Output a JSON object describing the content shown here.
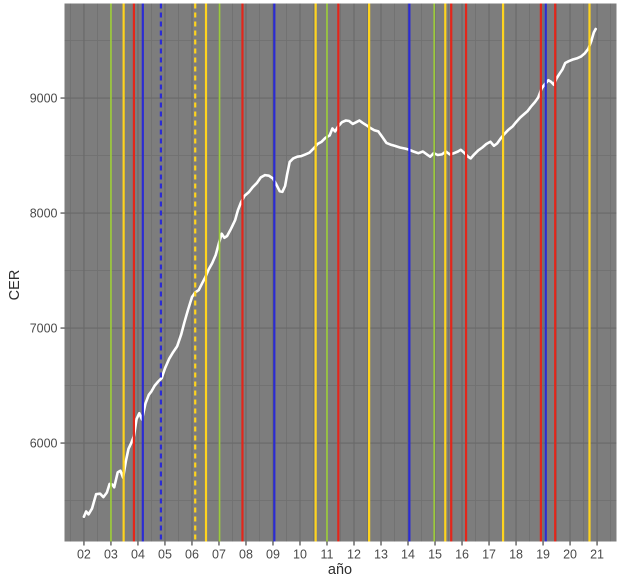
{
  "chart_data": {
    "type": "line",
    "title": "",
    "xlabel": "año",
    "ylabel": "CER",
    "legend_position": "none",
    "grid": "on",
    "x_range": [
      2001.28,
      2021.72
    ],
    "y_range": [
      5144,
      9822
    ],
    "x_ticks": [
      {
        "x": 2002,
        "label": "02"
      },
      {
        "x": 2003,
        "label": "03"
      },
      {
        "x": 2004,
        "label": "04"
      },
      {
        "x": 2005,
        "label": "05"
      },
      {
        "x": 2006,
        "label": "06"
      },
      {
        "x": 2007,
        "label": "07"
      },
      {
        "x": 2008,
        "label": "08"
      },
      {
        "x": 2009,
        "label": "09"
      },
      {
        "x": 2010,
        "label": "10"
      },
      {
        "x": 2011,
        "label": "11"
      },
      {
        "x": 2012,
        "label": "12"
      },
      {
        "x": 2013,
        "label": "13"
      },
      {
        "x": 2014,
        "label": "14"
      },
      {
        "x": 2015,
        "label": "15"
      },
      {
        "x": 2016,
        "label": "16"
      },
      {
        "x": 2017,
        "label": "17"
      },
      {
        "x": 2018,
        "label": "18"
      },
      {
        "x": 2019,
        "label": "19"
      },
      {
        "x": 2020,
        "label": "20"
      },
      {
        "x": 2021,
        "label": "21"
      }
    ],
    "y_ticks": [
      {
        "y": 6000,
        "label": "6000"
      },
      {
        "y": 7000,
        "label": "7000"
      },
      {
        "y": 8000,
        "label": "8000"
      },
      {
        "y": 9000,
        "label": "9000"
      }
    ],
    "y_minor": [
      5500,
      6500,
      7500,
      8500,
      9500
    ],
    "x_minor_start": 2001.5,
    "x_minor_end": 2021.5,
    "colors": {
      "panel_bg": "#7d7d7d",
      "grid_major": "#696969",
      "grid_minor": "#717171",
      "tick_mark": "#333333",
      "axis_text": "#4a4a4a",
      "white": "#ffffff",
      "red": "#e3261a",
      "yellow": "#ffd41e",
      "green": "#9ccb3c",
      "blue": "#2b2bd4"
    },
    "vlines": [
      {
        "x": 2003.0,
        "color": "green",
        "style": "solid"
      },
      {
        "x": 2003.47,
        "color": "yellow",
        "style": "solid"
      },
      {
        "x": 2003.85,
        "color": "red",
        "style": "solid"
      },
      {
        "x": 2004.18,
        "color": "blue",
        "style": "solid"
      },
      {
        "x": 2004.85,
        "color": "blue",
        "style": "dashed"
      },
      {
        "x": 2006.12,
        "color": "yellow",
        "style": "dashed"
      },
      {
        "x": 2006.52,
        "color": "yellow",
        "style": "solid"
      },
      {
        "x": 2007.02,
        "color": "green",
        "style": "solid"
      },
      {
        "x": 2007.87,
        "color": "red",
        "style": "solid"
      },
      {
        "x": 2009.05,
        "color": "blue",
        "style": "solid"
      },
      {
        "x": 2010.58,
        "color": "yellow",
        "style": "solid"
      },
      {
        "x": 2011.0,
        "color": "green",
        "style": "solid"
      },
      {
        "x": 2011.42,
        "color": "red",
        "style": "solid"
      },
      {
        "x": 2012.56,
        "color": "yellow",
        "style": "solid"
      },
      {
        "x": 2014.05,
        "color": "blue",
        "style": "solid"
      },
      {
        "x": 2014.97,
        "color": "green",
        "style": "solid"
      },
      {
        "x": 2015.38,
        "color": "yellow",
        "style": "solid"
      },
      {
        "x": 2015.6,
        "color": "red",
        "style": "solid"
      },
      {
        "x": 2016.15,
        "color": "red",
        "style": "solid"
      },
      {
        "x": 2017.52,
        "color": "yellow",
        "style": "solid"
      },
      {
        "x": 2018.92,
        "color": "red",
        "style": "solid"
      },
      {
        "x": 2019.1,
        "color": "blue",
        "style": "solid"
      },
      {
        "x": 2019.45,
        "color": "red",
        "style": "solid"
      },
      {
        "x": 2020.72,
        "color": "yellow",
        "style": "solid"
      }
    ],
    "series": [
      {
        "name": "CER",
        "color": "white",
        "points": [
          [
            2002.0,
            5360
          ],
          [
            2002.08,
            5405
          ],
          [
            2002.17,
            5380
          ],
          [
            2002.3,
            5430
          ],
          [
            2002.45,
            5555
          ],
          [
            2002.6,
            5560
          ],
          [
            2002.72,
            5530
          ],
          [
            2002.85,
            5570
          ],
          [
            2002.95,
            5645
          ],
          [
            2003.05,
            5640
          ],
          [
            2003.12,
            5615
          ],
          [
            2003.25,
            5745
          ],
          [
            2003.35,
            5760
          ],
          [
            2003.45,
            5700
          ],
          [
            2003.55,
            5840
          ],
          [
            2003.65,
            5950
          ],
          [
            2003.75,
            6000
          ],
          [
            2003.85,
            6060
          ],
          [
            2003.95,
            6210
          ],
          [
            2004.05,
            6260
          ],
          [
            2004.15,
            6205
          ],
          [
            2004.28,
            6345
          ],
          [
            2004.4,
            6420
          ],
          [
            2004.5,
            6450
          ],
          [
            2004.62,
            6500
          ],
          [
            2004.75,
            6535
          ],
          [
            2004.88,
            6565
          ],
          [
            2005.0,
            6650
          ],
          [
            2005.15,
            6730
          ],
          [
            2005.3,
            6790
          ],
          [
            2005.45,
            6840
          ],
          [
            2005.6,
            6945
          ],
          [
            2005.72,
            7050
          ],
          [
            2005.85,
            7155
          ],
          [
            2006.0,
            7270
          ],
          [
            2006.12,
            7310
          ],
          [
            2006.25,
            7330
          ],
          [
            2006.38,
            7390
          ],
          [
            2006.5,
            7445
          ],
          [
            2006.62,
            7510
          ],
          [
            2006.75,
            7565
          ],
          [
            2006.88,
            7635
          ],
          [
            2007.0,
            7740
          ],
          [
            2007.1,
            7820
          ],
          [
            2007.2,
            7785
          ],
          [
            2007.3,
            7800
          ],
          [
            2007.45,
            7865
          ],
          [
            2007.6,
            7940
          ],
          [
            2007.7,
            8025
          ],
          [
            2007.82,
            8095
          ],
          [
            2007.95,
            8150
          ],
          [
            2008.1,
            8180
          ],
          [
            2008.25,
            8225
          ],
          [
            2008.4,
            8260
          ],
          [
            2008.55,
            8310
          ],
          [
            2008.7,
            8330
          ],
          [
            2008.85,
            8325
          ],
          [
            2009.0,
            8300
          ],
          [
            2009.12,
            8250
          ],
          [
            2009.25,
            8190
          ],
          [
            2009.35,
            8185
          ],
          [
            2009.45,
            8235
          ],
          [
            2009.52,
            8330
          ],
          [
            2009.62,
            8445
          ],
          [
            2009.75,
            8475
          ],
          [
            2009.9,
            8490
          ],
          [
            2010.05,
            8495
          ],
          [
            2010.2,
            8510
          ],
          [
            2010.35,
            8525
          ],
          [
            2010.5,
            8560
          ],
          [
            2010.65,
            8600
          ],
          [
            2010.8,
            8620
          ],
          [
            2010.95,
            8655
          ],
          [
            2011.1,
            8675
          ],
          [
            2011.2,
            8735
          ],
          [
            2011.3,
            8710
          ],
          [
            2011.42,
            8755
          ],
          [
            2011.55,
            8790
          ],
          [
            2011.7,
            8805
          ],
          [
            2011.82,
            8800
          ],
          [
            2011.95,
            8775
          ],
          [
            2012.08,
            8790
          ],
          [
            2012.2,
            8805
          ],
          [
            2012.32,
            8785
          ],
          [
            2012.45,
            8765
          ],
          [
            2012.6,
            8740
          ],
          [
            2012.75,
            8720
          ],
          [
            2012.9,
            8710
          ],
          [
            2013.05,
            8660
          ],
          [
            2013.2,
            8610
          ],
          [
            2013.35,
            8595
          ],
          [
            2013.5,
            8585
          ],
          [
            2013.7,
            8570
          ],
          [
            2013.9,
            8560
          ],
          [
            2014.05,
            8550
          ],
          [
            2014.2,
            8535
          ],
          [
            2014.38,
            8520
          ],
          [
            2014.55,
            8535
          ],
          [
            2014.7,
            8510
          ],
          [
            2014.82,
            8490
          ],
          [
            2014.95,
            8520
          ],
          [
            2015.1,
            8505
          ],
          [
            2015.25,
            8510
          ],
          [
            2015.4,
            8535
          ],
          [
            2015.55,
            8510
          ],
          [
            2015.7,
            8520
          ],
          [
            2015.85,
            8535
          ],
          [
            2015.95,
            8550
          ],
          [
            2016.1,
            8520
          ],
          [
            2016.22,
            8490
          ],
          [
            2016.32,
            8475
          ],
          [
            2016.45,
            8510
          ],
          [
            2016.6,
            8545
          ],
          [
            2016.75,
            8570
          ],
          [
            2016.9,
            8600
          ],
          [
            2017.05,
            8620
          ],
          [
            2017.18,
            8585
          ],
          [
            2017.3,
            8605
          ],
          [
            2017.45,
            8655
          ],
          [
            2017.58,
            8690
          ],
          [
            2017.72,
            8725
          ],
          [
            2017.88,
            8755
          ],
          [
            2018.0,
            8790
          ],
          [
            2018.15,
            8830
          ],
          [
            2018.3,
            8860
          ],
          [
            2018.42,
            8885
          ],
          [
            2018.55,
            8925
          ],
          [
            2018.7,
            8965
          ],
          [
            2018.82,
            9005
          ],
          [
            2018.95,
            9085
          ],
          [
            2019.08,
            9125
          ],
          [
            2019.2,
            9155
          ],
          [
            2019.3,
            9140
          ],
          [
            2019.4,
            9115
          ],
          [
            2019.5,
            9170
          ],
          [
            2019.62,
            9215
          ],
          [
            2019.72,
            9250
          ],
          [
            2019.82,
            9305
          ],
          [
            2019.95,
            9320
          ],
          [
            2020.1,
            9335
          ],
          [
            2020.25,
            9345
          ],
          [
            2020.4,
            9360
          ],
          [
            2020.55,
            9390
          ],
          [
            2020.68,
            9430
          ],
          [
            2020.78,
            9490
          ],
          [
            2020.88,
            9570
          ],
          [
            2020.95,
            9600
          ]
        ]
      }
    ]
  }
}
